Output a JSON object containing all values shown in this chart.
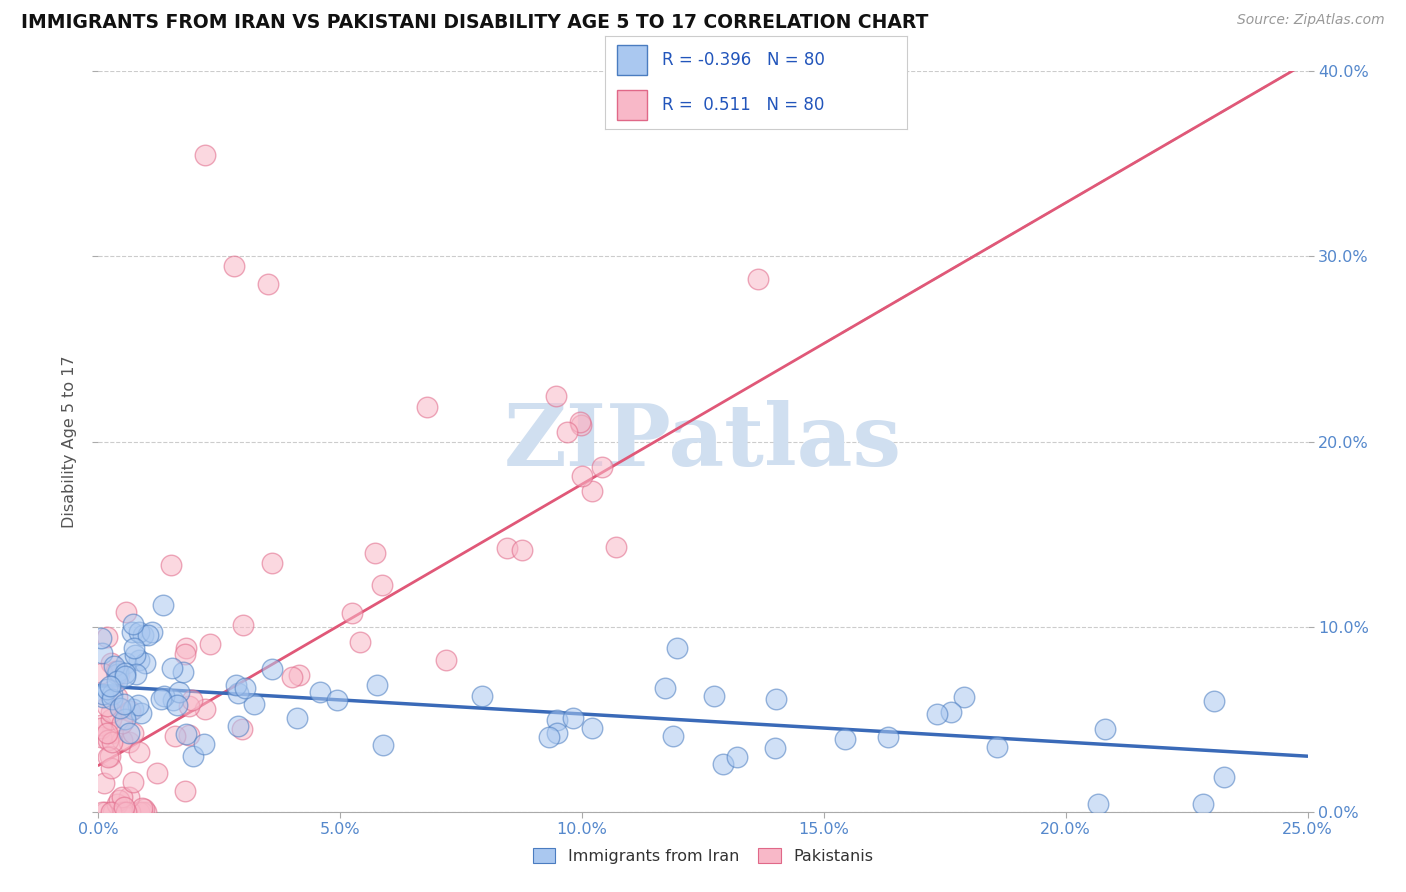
{
  "title": "IMMIGRANTS FROM IRAN VS PAKISTANI DISABILITY AGE 5 TO 17 CORRELATION CHART",
  "source": "Source: ZipAtlas.com",
  "ylabel": "Disability Age 5 to 17",
  "legend_label_1": "Immigrants from Iran",
  "legend_label_2": "Pakistanis",
  "r1": -0.396,
  "r2": 0.511,
  "n1": 80,
  "n2": 80,
  "xlim": [
    0.0,
    0.25
  ],
  "ylim": [
    0.0,
    0.4
  ],
  "xtick_labels": [
    "0.0%",
    "5.0%",
    "10.0%",
    "15.0%",
    "20.0%",
    "25.0%"
  ],
  "ytick_labels": [
    "0.0%",
    "10.0%",
    "20.0%",
    "30.0%",
    "40.0%"
  ],
  "color_iran": "#aac8f0",
  "color_iran_edge": "#4a7cc0",
  "color_pak": "#f8b8c8",
  "color_pak_edge": "#e06888",
  "color_trendline_iran": "#3a6ab8",
  "color_trendline_pak": "#e05878",
  "watermark_color": "#d0dff0",
  "background_color": "#ffffff",
  "grid_color": "#cccccc",
  "tick_label_color": "#5588cc"
}
